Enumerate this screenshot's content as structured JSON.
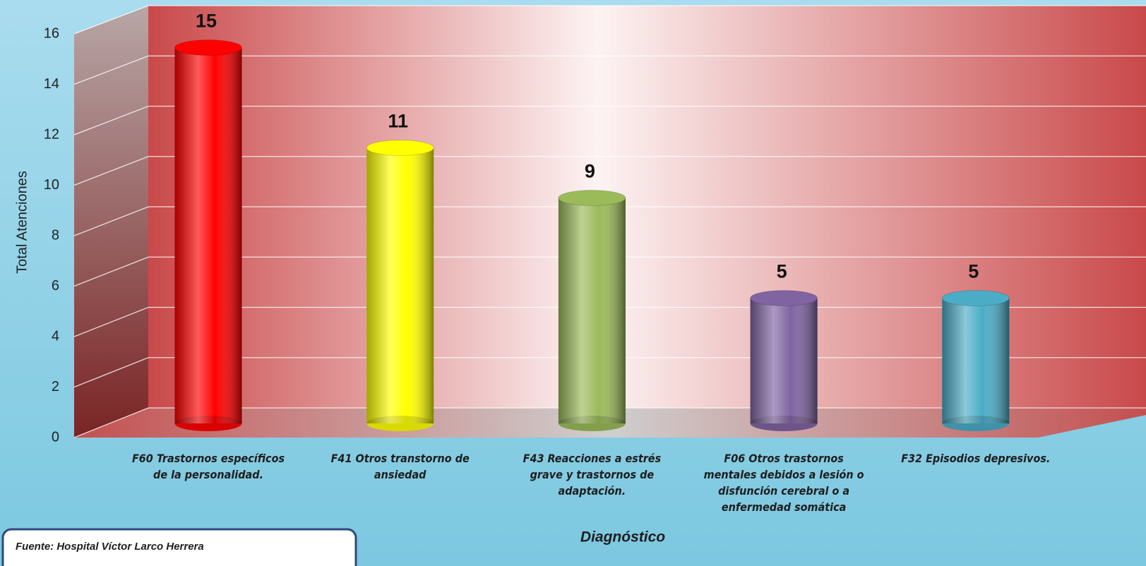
{
  "chart_data": {
    "type": "bar",
    "categories": [
      "F60 Trastornos específicos de la personalidad.",
      "F41 Otros transtorno de ansiedad",
      "F43 Reacciones a estrés grave y trastornos de adaptación.",
      "F06 Otros trastornos mentales debidos a lesión o disfunción cerebral o a enfermedad somática",
      "F32 Episodios depresivos."
    ],
    "values": [
      15,
      11,
      9,
      5,
      5
    ],
    "colors": [
      "#ff0000",
      "#ffff00",
      "#9bbb59",
      "#8064a2",
      "#4bacc6"
    ],
    "ylabel": "Total Atenciones",
    "xlabel": "Diagnóstico",
    "ylim": [
      0,
      16
    ],
    "yticks": [
      0,
      2,
      4,
      6,
      8,
      10,
      12,
      14,
      16
    ],
    "grid": true
  },
  "source": "Fuente: Hospital Víctor Larco Herrera"
}
